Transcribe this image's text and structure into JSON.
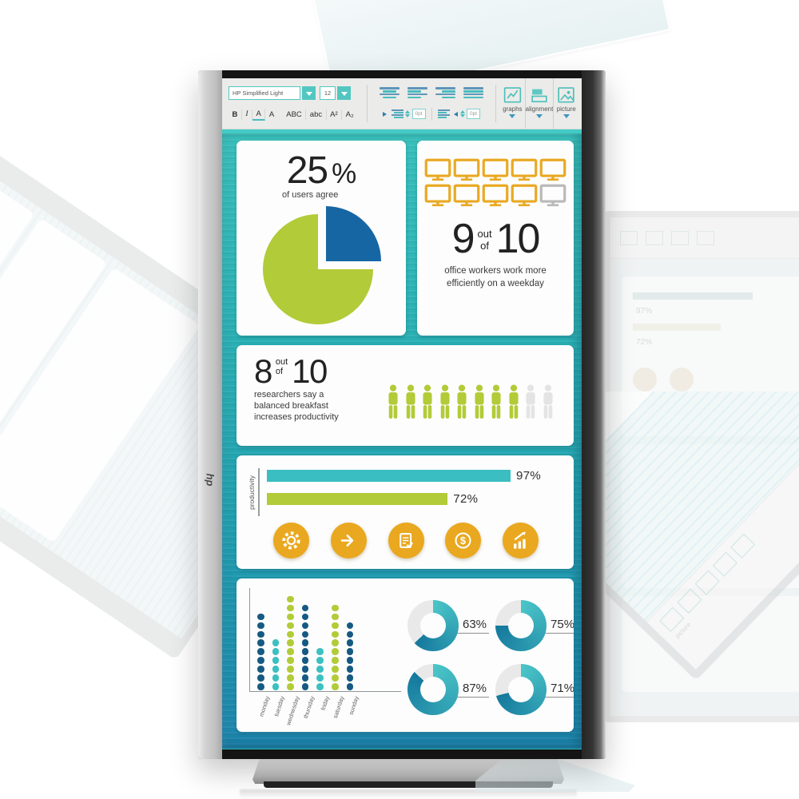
{
  "product": {
    "brand_logo": "hp"
  },
  "toolbar": {
    "font_name": "HP Simplified Light",
    "font_size": "12",
    "format_buttons": [
      "B",
      "I",
      "A",
      "A",
      "ABC",
      "abc",
      "A²",
      "A₂"
    ],
    "indent_left_value": "0pt",
    "indent_right_value": "0pt",
    "menus": [
      {
        "label": "graphs"
      },
      {
        "label": "alignment"
      },
      {
        "label": "picture"
      }
    ]
  },
  "infographic": {
    "users_agree": {
      "value": "25",
      "unit": "%",
      "caption": "of users agree"
    },
    "office_workers": {
      "count": "9",
      "out": "out",
      "of": "of",
      "total": "10",
      "caption_line1": "office workers work more",
      "caption_line2": "efficiently on a weekday",
      "icons_total": 10,
      "icons_highlighted": 9
    },
    "breakfast": {
      "count": "8",
      "out": "out",
      "of": "of",
      "total": "10",
      "caption_line1": "researchers say a",
      "caption_line2": "balanced breakfast",
      "caption_line3": "increases productivity",
      "icons_total": 10,
      "icons_highlighted": 8
    },
    "productivity": {
      "axis_label": "productivity",
      "bars": [
        {
          "label": "97%",
          "value": 97,
          "color": "#3abec2"
        },
        {
          "label": "72%",
          "value": 72,
          "color": "#b2cb38"
        }
      ],
      "action_icons": [
        "gear",
        "arrow-right",
        "checklist",
        "dollar",
        "growth-chart"
      ]
    },
    "weekly_dots": {
      "days": [
        {
          "label": "monday",
          "value": 9,
          "color": "#155a82"
        },
        {
          "label": "tuesday",
          "value": 6,
          "color": "#3cc0c0"
        },
        {
          "label": "wednesday",
          "value": 11,
          "color": "#b2cb38"
        },
        {
          "label": "thursday",
          "value": 10,
          "color": "#155a82"
        },
        {
          "label": "friday",
          "value": 5,
          "color": "#3cc0c0"
        },
        {
          "label": "saturday",
          "value": 10,
          "color": "#b2cb38"
        },
        {
          "label": "sunday",
          "value": 8,
          "color": "#155a82"
        }
      ]
    },
    "donuts": [
      {
        "label": "63%",
        "value": 63
      },
      {
        "label": "75%",
        "value": 75
      },
      {
        "label": "87%",
        "value": 87
      },
      {
        "label": "71%",
        "value": 71
      }
    ]
  },
  "colors": {
    "accent_teal": "#49bcbd",
    "pie_green": "#b2cb38",
    "pie_blue": "#1766a4",
    "monitor_gold": "#e9a923",
    "monitor_gray": "#b9b9b9",
    "person_green": "#b2cb38",
    "person_gray": "#e4e4e4",
    "gold_circle": "#e9a81f",
    "donut_start": "#4ac5c8",
    "donut_end": "#15799d",
    "donut_rest": "#e9e9e9"
  },
  "chart_data": [
    {
      "type": "pie",
      "title": "25% of users agree",
      "labels": [
        "agree",
        "other"
      ],
      "values": [
        25,
        75
      ],
      "colors": [
        "#1766a4",
        "#b2cb38"
      ]
    },
    {
      "type": "pictograph",
      "icon": "monitor",
      "value": 9,
      "total": 10,
      "title": "9 out of 10 office workers work more efficiently on a weekday"
    },
    {
      "type": "pictograph",
      "icon": "person",
      "value": 8,
      "total": 10,
      "title": "8 out of 10 researchers say a balanced breakfast increases productivity"
    },
    {
      "type": "bar",
      "orientation": "horizontal",
      "ylabel": "productivity",
      "categories": [
        "bar1",
        "bar2"
      ],
      "values": [
        97,
        72
      ],
      "labels": [
        "97%",
        "72%"
      ],
      "xlim": [
        0,
        100
      ],
      "colors": [
        "#3abec2",
        "#b2cb38"
      ]
    },
    {
      "type": "scatter",
      "subtype": "dot-columns",
      "categories": [
        "monday",
        "tuesday",
        "wednesday",
        "thursday",
        "friday",
        "saturday",
        "sunday"
      ],
      "values": [
        9,
        6,
        11,
        10,
        5,
        10,
        8
      ],
      "colors": [
        "#155a82",
        "#3cc0c0",
        "#b2cb38",
        "#155a82",
        "#3cc0c0",
        "#b2cb38",
        "#155a82"
      ]
    },
    {
      "type": "pie",
      "subtype": "donut",
      "labels": [
        "63%",
        "75%",
        "87%",
        "71%"
      ],
      "values": [
        63,
        75,
        87,
        71
      ]
    }
  ]
}
